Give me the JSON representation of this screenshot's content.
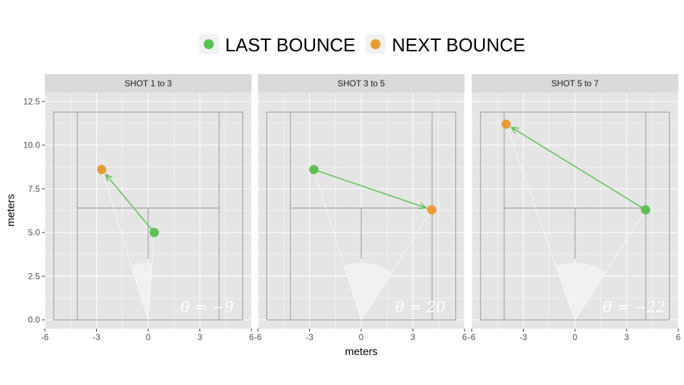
{
  "chart_data": {
    "type": "scatter",
    "legend": {
      "placement": "top",
      "entries": [
        {
          "label": "LAST BOUNCE",
          "color": "#5cc152"
        },
        {
          "label": "NEXT BOUNCE",
          "color": "#e89b34"
        }
      ]
    },
    "xlabel": "meters",
    "ylabel": "meters",
    "xlim": [
      -6,
      6
    ],
    "ylim": [
      -0.5,
      13
    ],
    "x_ticks": [
      -6,
      -3,
      0,
      3,
      6
    ],
    "x_tick_labels": [
      "-6",
      "-3",
      "0",
      "3",
      "6"
    ],
    "y_ticks": [
      0,
      2.5,
      5,
      7.5,
      10,
      12.5
    ],
    "y_tick_labels": [
      "0.0",
      "2.5",
      "5.0",
      "7.5",
      "10.0",
      "12.5"
    ],
    "grid": true,
    "colors": {
      "panel_bg": "#e5e5e5",
      "strip_bg": "#d9d9d9",
      "court_line": "#a6a6a6",
      "last_bounce": "#5cc152",
      "next_bounce": "#e89b34",
      "arrow": "#5cc152",
      "wedge": "#f2f2f2"
    },
    "court": {
      "baseline_y": 0,
      "far_y": 11.89,
      "service_line_y": 6.4,
      "outer_half_width": 5.485,
      "singles_half_width": 4.115,
      "center_mark_top": 3.5
    },
    "panels": [
      {
        "title": "SHOT 1 to 3",
        "theta_label": "θ = −9",
        "theta_deg": -9,
        "last": {
          "x": 0.35,
          "y": 5.0
        },
        "next": {
          "x": -2.7,
          "y": 8.6
        }
      },
      {
        "title": "SHOT 3 to 5",
        "theta_label": "θ = 20",
        "theta_deg": 20,
        "last": {
          "x": -2.75,
          "y": 8.6
        },
        "next": {
          "x": 4.1,
          "y": 6.3
        }
      },
      {
        "title": "SHOT 5 to 7",
        "theta_label": "θ = −22",
        "theta_deg": -22,
        "last": {
          "x": 4.1,
          "y": 6.3
        },
        "next": {
          "x": -4.0,
          "y": 11.2
        }
      }
    ]
  }
}
